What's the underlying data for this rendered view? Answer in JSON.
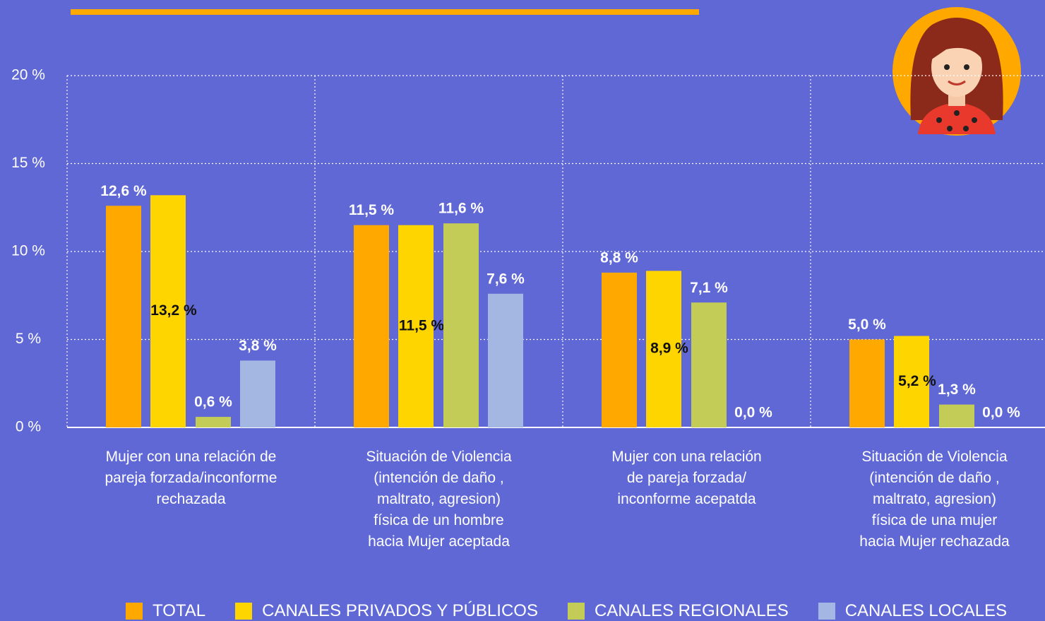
{
  "chart_data": {
    "type": "bar",
    "categories": [
      "Mujer con una relación de\npareja forzada/inconforme\nrechazada",
      "Situación de Violencia\n(intención de daño ,\nmaltrato, agresion)\nfísica de un hombre\nhacia Mujer aceptada",
      "Mujer con una relación\nde pareja forzada/\ninconforme acepatda",
      "Situación de Violencia\n(intención de daño ,\nmaltrato, agresion)\nfísica de una mujer\nhacia Mujer  rechazada"
    ],
    "series": [
      {
        "name": "TOTAL",
        "color": "#ffa800",
        "values": [
          12.6,
          11.5,
          8.8,
          5.0
        ],
        "value_labels": [
          "12,6 %",
          "11,5 %",
          "8,8 %",
          "5,0 %"
        ]
      },
      {
        "name": "CANALES PRIVADOS Y PÚBLICOS",
        "color": "#ffd500",
        "values": [
          13.2,
          11.5,
          8.9,
          5.2
        ],
        "value_labels": [
          "13,2 %",
          "11,5 %",
          "8,9 %",
          "5,2 %"
        ]
      },
      {
        "name": "CANALES REGIONALES",
        "color": "#c4cc58",
        "values": [
          0.6,
          11.6,
          7.1,
          1.3
        ],
        "value_labels": [
          "0,6 %",
          "11,6 %",
          "7,1 %",
          "1,3 %"
        ]
      },
      {
        "name": "CANALES LOCALES",
        "color": "#a4b6e2",
        "values": [
          3.8,
          7.6,
          0.0,
          0.0
        ],
        "value_labels": [
          "3,8 %",
          "7,6 %",
          "0,0 %",
          "0,0 %"
        ]
      }
    ],
    "ylim": [
      0,
      20
    ],
    "yticks": [
      {
        "value": 0,
        "label": "0 %"
      },
      {
        "value": 5,
        "label": "5 %"
      },
      {
        "value": 10,
        "label": "10 %"
      },
      {
        "value": 15,
        "label": "15 %"
      },
      {
        "value": 20,
        "label": "20 %"
      }
    ],
    "grid": true
  }
}
